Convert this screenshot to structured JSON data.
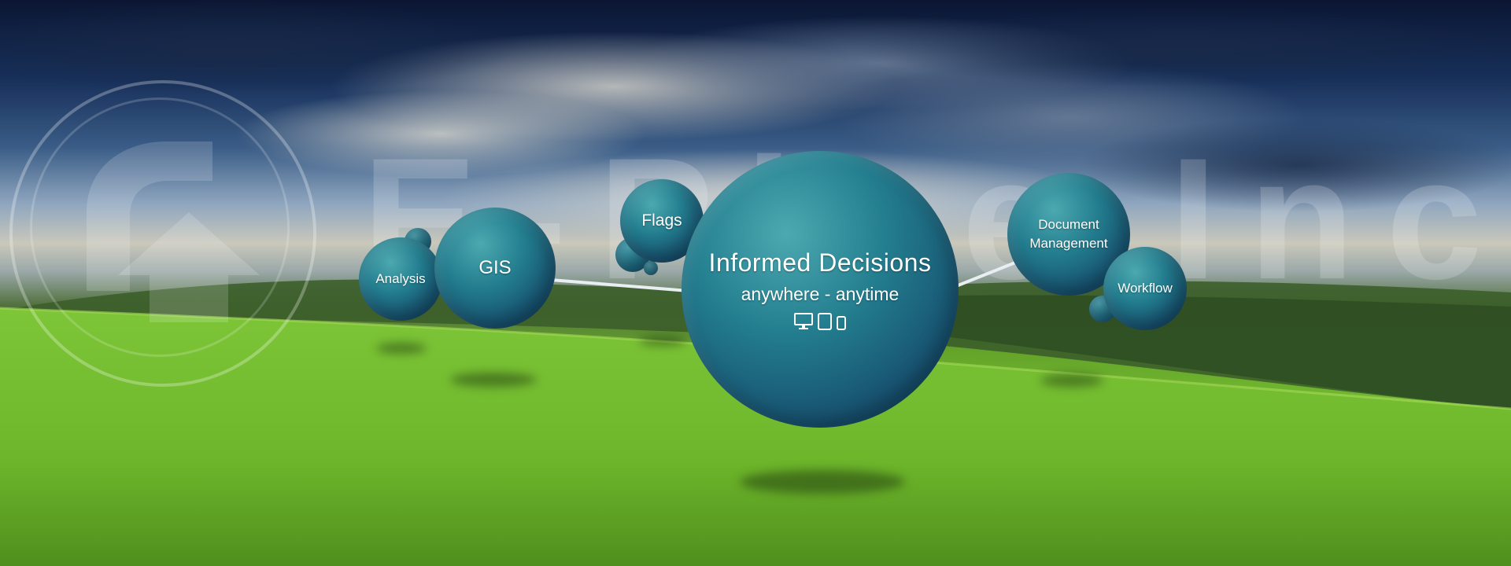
{
  "watermark": {
    "text": "E-Pipe Inc."
  },
  "bubbles": {
    "main_title": "Informed Decisions",
    "main_subtitle": "anywhere - anytime",
    "flags": "Flags",
    "gis": "GIS",
    "analysis": "Analysis",
    "document_line1": "Document",
    "document_line2": "Management",
    "workflow": "Workflow"
  },
  "icons": [
    "desktop-monitor-icon",
    "tablet-icon",
    "phone-icon",
    "logo-mark-icon"
  ],
  "colors": {
    "bubble": "#1f6e86",
    "link": "#e8eef2",
    "grass": "#79c233",
    "sky": "#17305a"
  }
}
